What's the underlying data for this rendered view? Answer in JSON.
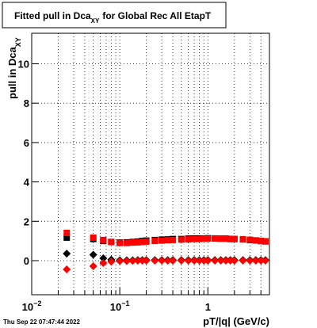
{
  "chart_data": {
    "type": "scatter",
    "title": "Fitted pull in Dca",
    "title_subscript": "XY",
    "title_suffix": "for Global Rec All EtapT",
    "y_label": "pull in Dca",
    "y_label_subscript": "XY",
    "x_label": "pT/|q| (GeV/c)",
    "timestamp": "Thu Sep 22 07:47:44 2022",
    "x_log": true,
    "grid": true,
    "xlim": [
      0.01,
      5
    ],
    "ylim": [
      -1.73,
      11.55
    ],
    "xticks": [
      {
        "value": 0.01,
        "label": "10",
        "exponent": "−2"
      },
      {
        "value": 0.1,
        "label": "10",
        "exponent": "−1"
      },
      1
    ],
    "xminorticks": [
      0.02,
      0.03,
      0.04,
      0.05,
      0.06,
      0.07,
      0.08,
      0.09,
      0.2,
      0.3,
      0.4,
      0.5,
      0.6,
      0.7,
      0.8,
      0.9,
      2,
      3,
      4
    ],
    "yticks": [
      0,
      2,
      4,
      6,
      8,
      10
    ],
    "x": [
      0.025,
      0.05,
      0.065,
      0.08,
      0.1,
      0.12,
      0.14,
      0.16,
      0.18,
      0.2,
      0.25,
      0.3,
      0.35,
      0.4,
      0.5,
      0.6,
      0.7,
      0.8,
      0.9,
      1.0,
      1.2,
      1.4,
      1.6,
      1.8,
      2.0,
      2.5,
      3.0,
      3.5,
      4.0,
      4.5
    ],
    "series": [
      {
        "color": "#000000",
        "marker": "square",
        "values": [
          1.17,
          1.1,
          1.0,
          0.95,
          0.92,
          0.93,
          0.95,
          0.97,
          1.0,
          1.02,
          1.05,
          1.07,
          1.08,
          1.1,
          1.1,
          1.12,
          1.13,
          1.13,
          1.13,
          1.14,
          1.13,
          1.12,
          1.12,
          1.1,
          1.1,
          1.08,
          1.05,
          1.03,
          1.0,
          0.98
        ]
      },
      {
        "color": "#ff0000",
        "marker": "square",
        "values": [
          1.41,
          1.17,
          1.05,
          0.95,
          0.9,
          0.9,
          0.92,
          0.93,
          0.95,
          0.97,
          1.0,
          1.02,
          1.04,
          1.05,
          1.07,
          1.08,
          1.1,
          1.1,
          1.12,
          1.12,
          1.13,
          1.12,
          1.12,
          1.1,
          1.1,
          1.08,
          1.06,
          1.03,
          1.0,
          0.98
        ]
      },
      {
        "color": "#000000",
        "marker": "diamond",
        "values": [
          0.36,
          0.3,
          0.12,
          0.05,
          0.02,
          0.02,
          0.02,
          0.03,
          0.03,
          0.03,
          0.03,
          0.03,
          0.03,
          0.03,
          0.03,
          0.03,
          0.03,
          0.03,
          0.03,
          0.03,
          0.03,
          0.03,
          0.03,
          0.03,
          0.03,
          0.03,
          0.03,
          0.03,
          0.03,
          0.03
        ]
      },
      {
        "color": "#ff0000",
        "marker": "diamond",
        "values": [
          -0.44,
          -0.28,
          -0.12,
          -0.05,
          -0.02,
          -0.02,
          -0.01,
          0.0,
          0.0,
          0.0,
          0.0,
          0.0,
          0.0,
          0.0,
          0.0,
          0.0,
          0.0,
          0.0,
          0.0,
          0.0,
          0.0,
          0.0,
          0.0,
          0.0,
          0.0,
          0.0,
          0.0,
          0.0,
          0.0,
          0.0
        ]
      }
    ]
  }
}
